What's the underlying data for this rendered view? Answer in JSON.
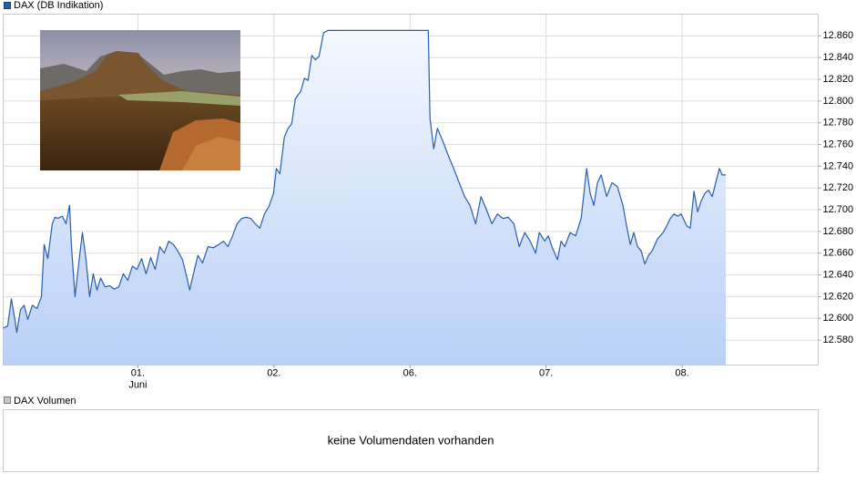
{
  "chart_data": {
    "type": "line",
    "xlim": [
      0.01,
      6.0
    ],
    "xticks": [
      {
        "value": 1,
        "label": "01."
      },
      {
        "value": 2,
        "label": "02."
      },
      {
        "value": 3,
        "label": "06."
      },
      {
        "value": 4,
        "label": "07."
      },
      {
        "value": 5,
        "label": "08."
      }
    ],
    "month_label": "Juni",
    "ylim": [
      12.557,
      12.88
    ],
    "yticks": [
      {
        "value": 12.58,
        "label": "12.580"
      },
      {
        "value": 12.6,
        "label": "12.600"
      },
      {
        "value": 12.62,
        "label": "12.620"
      },
      {
        "value": 12.64,
        "label": "12.640"
      },
      {
        "value": 12.66,
        "label": "12.660"
      },
      {
        "value": 12.68,
        "label": "12.680"
      },
      {
        "value": 12.7,
        "label": "12.700"
      },
      {
        "value": 12.72,
        "label": "12.720"
      },
      {
        "value": 12.74,
        "label": "12.740"
      },
      {
        "value": 12.76,
        "label": "12.760"
      },
      {
        "value": 12.78,
        "label": "12.780"
      },
      {
        "value": 12.8,
        "label": "12.800"
      },
      {
        "value": 12.82,
        "label": "12.820"
      },
      {
        "value": 12.84,
        "label": "12.840"
      },
      {
        "value": 12.86,
        "label": "12.860"
      }
    ],
    "grid": true,
    "x": [
      0.01,
      0.043,
      0.07,
      0.097,
      0.11,
      0.137,
      0.164,
      0.191,
      0.224,
      0.258,
      0.291,
      0.311,
      0.338,
      0.371,
      0.391,
      0.411,
      0.445,
      0.472,
      0.498,
      0.512,
      0.538,
      0.565,
      0.592,
      0.619,
      0.645,
      0.672,
      0.699,
      0.726,
      0.759,
      0.793,
      0.826,
      0.86,
      0.893,
      0.926,
      0.96,
      0.993,
      1.027,
      1.06,
      1.094,
      1.127,
      1.161,
      1.194,
      1.227,
      1.261,
      1.294,
      1.328,
      1.361,
      1.381,
      1.408,
      1.441,
      1.475,
      1.515,
      1.555,
      1.595,
      1.629,
      1.662,
      1.696,
      1.729,
      1.763,
      1.796,
      1.829,
      1.863,
      1.896,
      1.93,
      1.963,
      1.997,
      2.017,
      2.043,
      2.077,
      2.104,
      2.13,
      2.157,
      2.197,
      2.224,
      2.251,
      2.278,
      2.304,
      2.331,
      2.365,
      2.398,
      3.134,
      3.147,
      3.174,
      3.201,
      3.241,
      3.281,
      3.321,
      3.361,
      3.401,
      3.441,
      3.482,
      3.522,
      3.562,
      3.602,
      3.642,
      3.682,
      3.722,
      3.763,
      3.803,
      3.843,
      3.883,
      3.923,
      3.95,
      3.99,
      4.017,
      4.043,
      4.084,
      4.11,
      4.137,
      4.177,
      4.217,
      4.258,
      4.298,
      4.324,
      4.351,
      4.378,
      4.405,
      4.445,
      4.485,
      4.525,
      4.565,
      4.592,
      4.619,
      4.645,
      4.672,
      4.699,
      4.726,
      4.753,
      4.779,
      4.819,
      4.86,
      4.886,
      4.913,
      4.94,
      4.967,
      4.993,
      5.034,
      5.06,
      5.087,
      5.114,
      5.14,
      5.167,
      5.194,
      5.221,
      5.247,
      5.274,
      5.294,
      5.321
    ],
    "series": [
      {
        "name": "DAX (DB Indikation)",
        "color": "#2a5db0",
        "values": [
          12.591,
          12.593,
          12.618,
          12.598,
          12.587,
          12.608,
          12.612,
          12.599,
          12.612,
          12.609,
          12.62,
          12.668,
          12.655,
          12.687,
          12.693,
          12.692,
          12.694,
          12.687,
          12.704,
          12.666,
          12.62,
          12.65,
          12.679,
          12.654,
          12.62,
          12.641,
          12.626,
          12.637,
          12.629,
          12.63,
          12.627,
          12.629,
          12.641,
          12.635,
          12.648,
          12.645,
          12.655,
          12.641,
          12.656,
          12.645,
          12.666,
          12.66,
          12.671,
          12.668,
          12.662,
          12.654,
          12.637,
          12.626,
          12.641,
          12.658,
          12.651,
          12.666,
          12.665,
          12.668,
          12.671,
          12.666,
          12.676,
          12.687,
          12.692,
          12.693,
          12.692,
          12.687,
          12.683,
          12.696,
          12.703,
          12.715,
          12.738,
          12.733,
          12.767,
          12.775,
          12.779,
          12.802,
          12.809,
          12.821,
          12.819,
          12.842,
          12.838,
          12.841,
          12.863,
          12.865,
          12.865,
          12.784,
          12.756,
          12.775,
          12.763,
          12.75,
          12.738,
          12.725,
          12.712,
          12.704,
          12.687,
          12.712,
          12.7,
          12.687,
          12.696,
          12.692,
          12.693,
          12.687,
          12.666,
          12.679,
          12.671,
          12.66,
          12.679,
          12.671,
          12.676,
          12.666,
          12.654,
          12.671,
          12.666,
          12.679,
          12.676,
          12.692,
          12.738,
          12.715,
          12.704,
          12.725,
          12.732,
          12.712,
          12.725,
          12.721,
          12.704,
          12.685,
          12.668,
          12.679,
          12.666,
          12.662,
          12.65,
          12.658,
          12.662,
          12.673,
          12.679,
          12.685,
          12.692,
          12.696,
          12.694,
          12.696,
          12.685,
          12.683,
          12.717,
          12.698,
          12.708,
          12.715,
          12.718,
          12.712,
          12.725,
          12.738,
          12.732,
          12.732
        ]
      }
    ],
    "volume_panel": {
      "title": "DAX Volumen",
      "message": "keine Volumendaten vorhanden"
    }
  }
}
